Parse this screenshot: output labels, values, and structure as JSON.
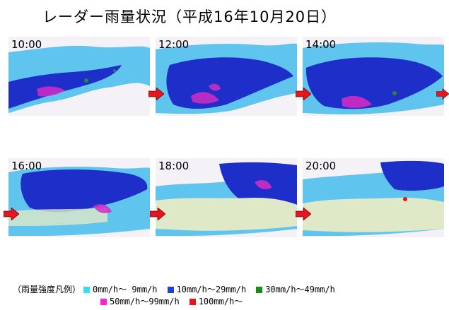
{
  "title": "レーダー雨量状況（平成16年10月20日）",
  "panels": [
    {
      "time": "10:00"
    },
    {
      "time": "12:00"
    },
    {
      "time": "14:00"
    },
    {
      "time": "16:00"
    },
    {
      "time": "18:00"
    },
    {
      "time": "20:00"
    }
  ],
  "legend": {
    "prefix": "（雨量強度凡例）",
    "items": [
      {
        "label": "0mm/h～ 9mm/h",
        "color": "#33e0f0"
      },
      {
        "label": "10mm/h～29mm/h",
        "color": "#1f3fd8"
      },
      {
        "label": "30mm/h～49mm/h",
        "color": "#1a8a1a"
      },
      {
        "label": "50mm/h～99mm/h",
        "color": "#ff22cc"
      },
      {
        "label": "100mm/h～",
        "color": "#ee1111"
      }
    ]
  },
  "colors": {
    "light_rain": "#5fc4ee",
    "heavy_blue": "#1d2fc8",
    "magenta": "#d22cc4",
    "land": "#dfe9c8",
    "arrow": "#e8141e"
  },
  "icons": [
    "right-arrow-icon"
  ]
}
